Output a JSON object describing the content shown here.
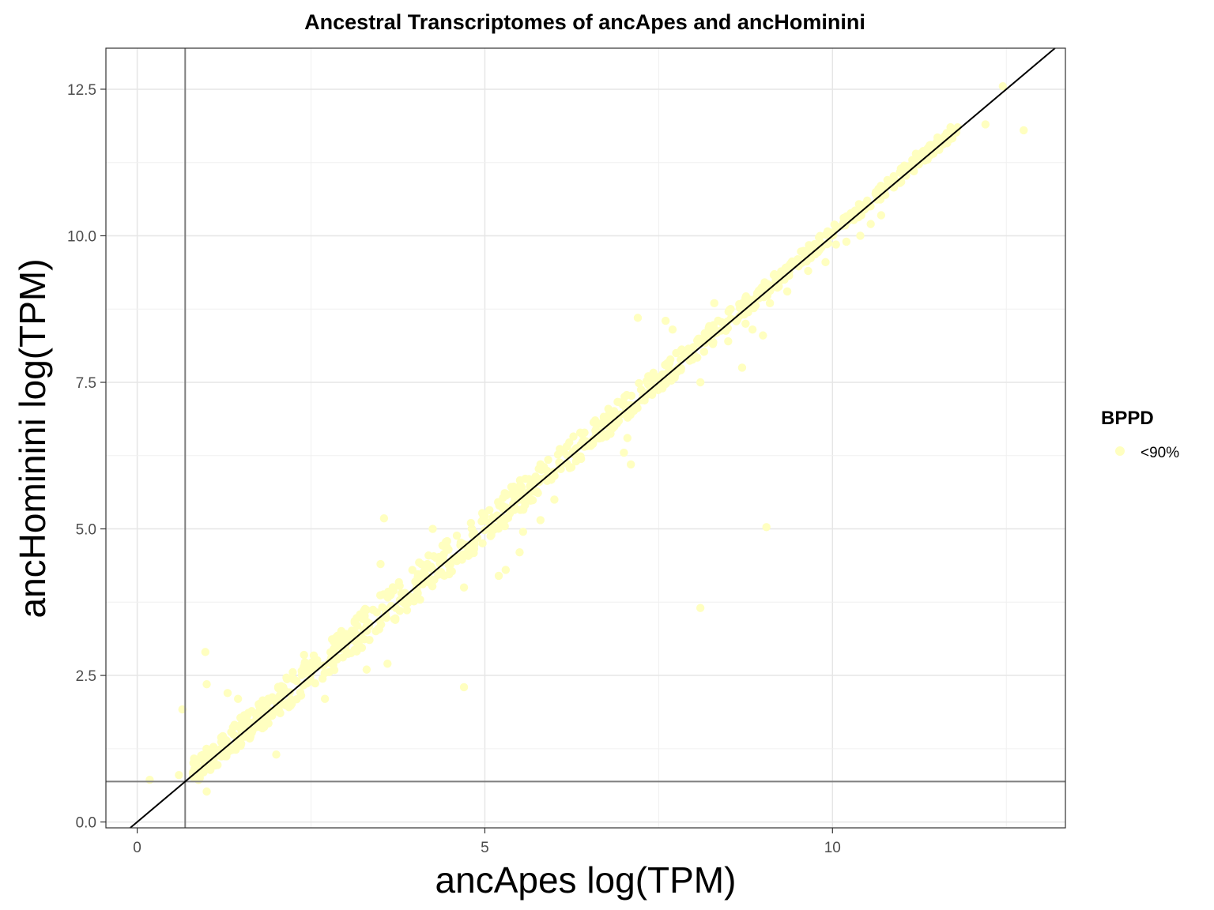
{
  "chart_data": {
    "type": "scatter",
    "title": "Ancestral Transcriptomes of ancApes and ancHominini",
    "xlabel": "ancApes log(TPM)",
    "ylabel": "ancHominini log(TPM)",
    "xlim": [
      -0.45,
      13.35
    ],
    "ylim": [
      -0.1,
      13.2
    ],
    "x_ticks": [
      0,
      5,
      10
    ],
    "x_tick_labels": [
      "0",
      "5",
      "10"
    ],
    "y_ticks": [
      0.0,
      2.5,
      5.0,
      7.5,
      10.0,
      12.5
    ],
    "y_tick_labels": [
      "0.0",
      "2.5",
      "5.0",
      "7.5",
      "10.0",
      "12.5"
    ],
    "grid": true,
    "legend": {
      "title": "BPPD",
      "placement": "right",
      "entries": [
        {
          "label": "<90%",
          "color": "#ffffc0"
        }
      ]
    },
    "reference_lines": {
      "identity": "y = x",
      "vertical_x": 0.69,
      "horizontal_y": 0.69
    },
    "series": [
      {
        "name": "<90%",
        "color": "#ffffc0",
        "points": [
          [
            0.18,
            0.72
          ],
          [
            0.65,
            1.92
          ],
          [
            0.98,
            2.9
          ],
          [
            1.0,
            2.35
          ],
          [
            1.0,
            0.52
          ],
          [
            1.3,
            2.2
          ],
          [
            1.45,
            2.1
          ],
          [
            2.0,
            1.15
          ],
          [
            2.1,
            2.3
          ],
          [
            2.4,
            2.85
          ],
          [
            2.7,
            2.1
          ],
          [
            3.3,
            2.6
          ],
          [
            3.6,
            2.7
          ],
          [
            3.5,
            4.4
          ],
          [
            3.55,
            5.18
          ],
          [
            4.5,
            4.3
          ],
          [
            4.25,
            5.0
          ],
          [
            4.7,
            4.0
          ],
          [
            4.8,
            5.1
          ],
          [
            4.7,
            2.3
          ],
          [
            5.3,
            4.3
          ],
          [
            5.2,
            4.2
          ],
          [
            5.5,
            4.6
          ],
          [
            5.55,
            4.95
          ],
          [
            5.8,
            5.15
          ],
          [
            6.0,
            5.5
          ],
          [
            6.6,
            6.6
          ],
          [
            6.9,
            6.8
          ],
          [
            7.0,
            6.3
          ],
          [
            7.1,
            6.1
          ],
          [
            7.05,
            6.55
          ],
          [
            7.2,
            8.6
          ],
          [
            7.6,
            8.55
          ],
          [
            7.7,
            8.4
          ],
          [
            8.1,
            7.5
          ],
          [
            8.1,
            3.65
          ],
          [
            8.3,
            8.85
          ],
          [
            8.5,
            8.2
          ],
          [
            8.7,
            7.75
          ],
          [
            8.75,
            8.5
          ],
          [
            8.85,
            8.4
          ],
          [
            9.0,
            8.3
          ],
          [
            9.05,
            5.03
          ],
          [
            9.1,
            8.85
          ],
          [
            9.35,
            9.05
          ],
          [
            9.65,
            9.4
          ],
          [
            9.9,
            9.55
          ],
          [
            10.05,
            9.85
          ],
          [
            10.2,
            9.9
          ],
          [
            10.4,
            10.0
          ],
          [
            10.55,
            10.2
          ],
          [
            10.7,
            10.35
          ],
          [
            11.2,
            11.4
          ],
          [
            11.5,
            11.6
          ],
          [
            12.2,
            11.9
          ],
          [
            12.45,
            12.55
          ],
          [
            12.75,
            11.8
          ],
          [
            0.6,
            0.8
          ],
          [
            0.9,
            0.75
          ],
          [
            1.5,
            1.6
          ],
          [
            1.7,
            1.85
          ],
          [
            2.5,
            2.6
          ],
          [
            3.0,
            3.1
          ],
          [
            3.2,
            3.0
          ],
          [
            3.8,
            3.9
          ],
          [
            4.0,
            4.1
          ],
          [
            4.4,
            4.5
          ],
          [
            5.8,
            5.85
          ],
          [
            6.3,
            6.35
          ],
          [
            6.8,
            6.9
          ],
          [
            7.5,
            7.55
          ],
          [
            8.0,
            8.1
          ],
          [
            9.5,
            9.6
          ],
          [
            10.5,
            10.6
          ],
          [
            11.0,
            11.05
          ],
          [
            11.8,
            11.85
          ]
        ]
      }
    ]
  }
}
